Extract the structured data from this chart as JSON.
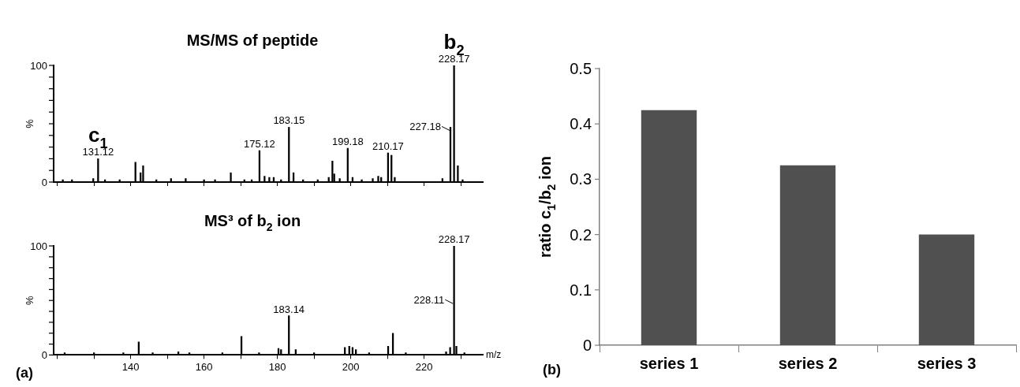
{
  "chart_data": [
    {
      "type": "bar",
      "title": "MS/MS of peptide",
      "ylabel": "%",
      "color": "#000000",
      "xlim": [
        119,
        236
      ],
      "xticks": [
        {
          "value": 120,
          "label": null
        },
        {
          "value": 130,
          "label": null
        },
        {
          "value": 140,
          "label": null
        },
        {
          "value": 150,
          "label": null
        },
        {
          "value": 160,
          "label": null
        },
        {
          "value": 170,
          "label": null
        },
        {
          "value": 180,
          "label": null
        },
        {
          "value": 190,
          "label": null
        },
        {
          "value": 200,
          "label": null
        },
        {
          "value": 210,
          "label": null
        },
        {
          "value": 220,
          "label": null
        },
        {
          "value": 230,
          "label": null
        }
      ],
      "ylim": [
        0,
        100
      ],
      "yticks": [
        0,
        {
          "value": 10,
          "label": null
        },
        {
          "value": 20,
          "label": null
        },
        {
          "value": 30,
          "label": null
        },
        {
          "value": 40,
          "label": null
        },
        {
          "value": 50,
          "label": null
        },
        {
          "value": 60,
          "label": null
        },
        {
          "value": 70,
          "label": null
        },
        {
          "value": 80,
          "label": null
        },
        {
          "value": 90,
          "label": null
        },
        100
      ],
      "tick_labels": "y",
      "x": [
        121.5,
        124,
        129.8,
        130.9,
        131.12,
        133,
        137,
        141.3,
        142.7,
        143.4,
        147,
        151,
        155,
        160,
        163,
        167.3,
        171,
        173,
        175.12,
        176.5,
        177.8,
        179,
        181,
        183.15,
        184.4,
        187,
        191,
        194,
        195,
        195.5,
        197,
        199.18,
        200.5,
        203,
        206,
        207.5,
        208.3,
        210.17,
        211.1,
        212,
        225,
        227.18,
        228.17,
        229.2,
        230.5
      ],
      "values": [
        2,
        2,
        3,
        null,
        20,
        2,
        2,
        17,
        8,
        14,
        2,
        3,
        3,
        2,
        2,
        8,
        2,
        2,
        27,
        5,
        4,
        4,
        2,
        47,
        8,
        2,
        2,
        4,
        18,
        7,
        3,
        29,
        4,
        2,
        3,
        5,
        4,
        25,
        23,
        4,
        3,
        47,
        100,
        14,
        2
      ],
      "annotations": [
        {
          "text": "131.12",
          "x": 131.12,
          "y": 20
        },
        {
          "text": "c$_{1}$",
          "x": 131.12,
          "y": 20
        },
        {
          "text": "175.12",
          "x": 175.12,
          "y": 27
        },
        {
          "text": "183.15",
          "x": 183.15,
          "y": 47
        },
        {
          "text": "199.18",
          "x": 199.18,
          "y": 29
        },
        {
          "text": "210.17",
          "x": 210.17,
          "y": 25
        },
        {
          "text": "227.18",
          "x": 227.18,
          "y": 47
        },
        {
          "text": "228.17",
          "x": 228.17,
          "y": 100
        },
        {
          "text": "b$_{2}$",
          "x": 228.17,
          "y": 100
        }
      ]
    },
    {
      "type": "bar",
      "title": "MS³ of b$_{2}$ ion",
      "ylabel": "%",
      "xlabel": "m/z",
      "color": "#000000",
      "xlim": [
        119,
        236
      ],
      "xticks": [
        {
          "value": 120,
          "label": null
        },
        {
          "value": 130,
          "label": null
        },
        140,
        {
          "value": 150,
          "label": null
        },
        160,
        {
          "value": 170,
          "label": null
        },
        180,
        {
          "value": 190,
          "label": null
        },
        200,
        {
          "value": 210,
          "label": null
        },
        220,
        {
          "value": 230,
          "label": null
        }
      ],
      "ylim": [
        0,
        100
      ],
      "yticks": [
        0,
        {
          "value": 10,
          "label": null
        },
        {
          "value": 20,
          "label": null
        },
        {
          "value": 30,
          "label": null
        },
        {
          "value": 40,
          "label": null
        },
        {
          "value": 50,
          "label": null
        },
        {
          "value": 60,
          "label": null
        },
        {
          "value": 70,
          "label": null
        },
        {
          "value": 80,
          "label": null
        },
        {
          "value": 90,
          "label": null
        },
        100
      ],
      "x": [
        122,
        130,
        138,
        142.2,
        146,
        153,
        156,
        165,
        170.2,
        175,
        180.3,
        181,
        182.9,
        183.14,
        185,
        190,
        198.4,
        199.6,
        200.5,
        201.4,
        205,
        210.2,
        211.5,
        215,
        226,
        227.1,
        228.11,
        228.17,
        228.8,
        231
      ],
      "values": [
        2,
        2,
        2,
        12,
        2,
        3,
        2,
        2,
        17,
        2,
        6,
        5,
        null,
        36,
        5,
        2,
        7,
        8,
        7,
        5,
        2,
        8,
        20,
        2,
        3,
        7,
        null,
        100,
        8,
        2
      ],
      "annotations": [
        {
          "text": "183.14",
          "x": 183.14,
          "y": 36
        },
        {
          "text": "228.11",
          "x": 228.11,
          "y": 50
        },
        {
          "text": "228.17",
          "x": 228.17,
          "y": 100
        },
        "(a)"
      ]
    },
    {
      "type": "bar",
      "ylabel": "ratio c$_{1}$/b$_{2}$ ion",
      "categories": [
        "series 1",
        "series 2",
        "series 3"
      ],
      "values": [
        0.425,
        0.325,
        0.2
      ],
      "color": "#505050",
      "ylim": [
        0,
        0.5
      ],
      "yticks": [
        0,
        0.1,
        0.2,
        0.3,
        0.4,
        0.5
      ],
      "annotations": [
        "(b)"
      ]
    }
  ]
}
